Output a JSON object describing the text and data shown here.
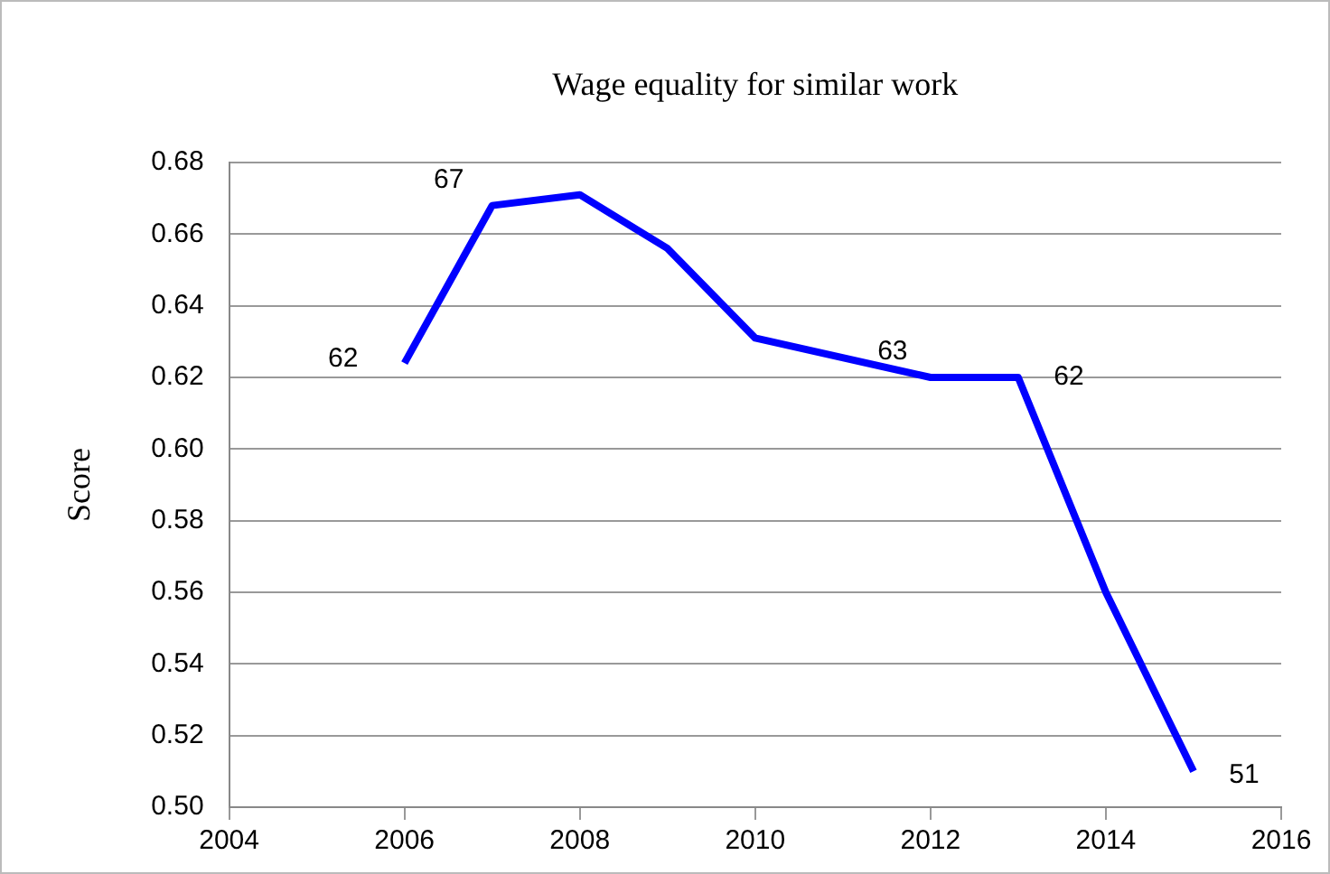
{
  "chart_data": {
    "type": "line",
    "title": "Wage equality for similar work",
    "ylabel": "Score",
    "x": [
      2006,
      2007,
      2008,
      2009,
      2010,
      2012,
      2013,
      2014,
      2015
    ],
    "series": [
      {
        "color": "#0000ff",
        "values": [
          0.624,
          0.668,
          0.671,
          0.656,
          0.631,
          0.62,
          0.62,
          0.56,
          0.51
        ]
      }
    ],
    "xlim": [
      2004,
      2016
    ],
    "xticks": [
      2004,
      2006,
      2008,
      2010,
      2012,
      2014,
      2016
    ],
    "ylim": [
      0.5,
      0.68
    ],
    "yticks": [
      {
        "value": 0.5,
        "label": "0.50"
      },
      {
        "value": 0.52,
        "label": "0.52"
      },
      {
        "value": 0.54,
        "label": "0.54"
      },
      {
        "value": 0.56,
        "label": "0.56"
      },
      {
        "value": 0.58,
        "label": "0.58"
      },
      {
        "value": 0.6,
        "label": "0.60"
      },
      {
        "value": 0.62,
        "label": "0.62"
      },
      {
        "value": 0.64,
        "label": "0.64"
      },
      {
        "value": 0.66,
        "label": "0.66"
      },
      {
        "value": 0.68,
        "label": "0.68"
      }
    ],
    "grid": "y",
    "legend": false,
    "marker": "none",
    "line_style": "solid",
    "annotations": [
      {
        "text": "62",
        "x": 2006,
        "y": 0.624
      },
      {
        "text": "67",
        "x": 2007,
        "y": 0.668
      },
      {
        "text": "63",
        "x": 2012,
        "y": 0.62
      },
      {
        "text": "62",
        "x": 2013,
        "y": 0.62
      },
      {
        "text": "51",
        "x": 2015,
        "y": 0.51
      }
    ]
  }
}
